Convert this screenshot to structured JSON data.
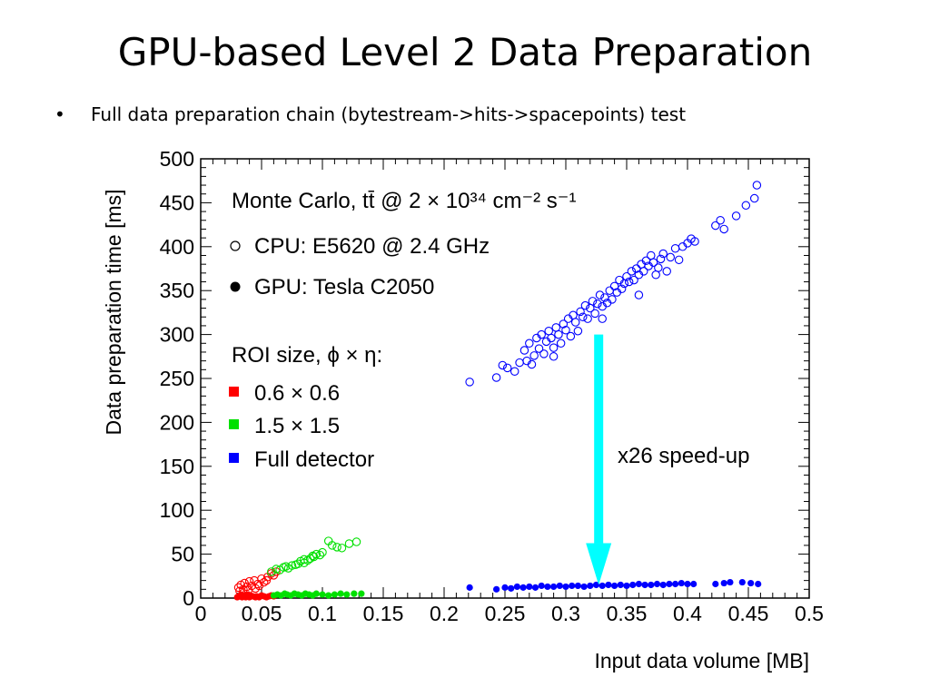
{
  "slide": {
    "title": "GPU-based Level 2 Data Preparation",
    "bullet": "Full data preparation chain (bytestream->hits->spacepoints) test"
  },
  "chart_data": {
    "type": "scatter",
    "xlabel": "Input data volume [MB]",
    "ylabel": "Data preparation time [ms]",
    "xlim": [
      0,
      0.5
    ],
    "ylim": [
      0,
      500
    ],
    "xticks": [
      0,
      0.05,
      0.1,
      0.15,
      0.2,
      0.25,
      0.3,
      0.35,
      0.4,
      0.45,
      0.5
    ],
    "xtick_labels": [
      "0",
      "0.05",
      "0.1",
      "0.15",
      "0.2",
      "0.25",
      "0.3",
      "0.35",
      "0.4",
      "0.45",
      "0.5"
    ],
    "yticks": [
      0,
      50,
      100,
      150,
      200,
      250,
      300,
      350,
      400,
      450,
      500
    ],
    "ytick_labels": [
      "0",
      "50",
      "100",
      "150",
      "200",
      "250",
      "300",
      "350",
      "400",
      "450",
      "500"
    ],
    "grid": false,
    "legend": {
      "placement": "top-left",
      "header": "Monte Carlo, tt̄ @ 2 × 10³⁴ cm⁻² s⁻¹",
      "markers": [
        {
          "label": "CPU: E5620 @ 2.4 GHz",
          "style": "open"
        },
        {
          "label": "GPU: Tesla C2050",
          "style": "filled"
        }
      ],
      "roi_header": "ROI size, ϕ × η:",
      "roi": [
        {
          "label": "0.6 × 0.6",
          "color": "#ff0000"
        },
        {
          "label": "1.5 × 1.5",
          "color": "#00e000"
        },
        {
          "label": "Full detector",
          "color": "#0000ff"
        }
      ]
    },
    "annotation": {
      "text": "x26 speed-up",
      "arrow_x": 0.327,
      "arrow_from": 300,
      "arrow_to": 15,
      "color": "#00ffff"
    },
    "series": [
      {
        "roi": "0.6 × 0.6",
        "cpu_gpu": "CPU",
        "marker": "open",
        "color": "#ff0000",
        "points": [
          [
            0.031,
            12
          ],
          [
            0.033,
            15
          ],
          [
            0.035,
            10
          ],
          [
            0.036,
            17
          ],
          [
            0.038,
            13
          ],
          [
            0.04,
            19
          ],
          [
            0.042,
            14
          ],
          [
            0.044,
            20
          ],
          [
            0.045,
            11
          ],
          [
            0.047,
            16
          ],
          [
            0.05,
            22
          ],
          [
            0.052,
            18
          ],
          [
            0.055,
            24
          ],
          [
            0.058,
            28
          ],
          [
            0.06,
            26
          ],
          [
            0.062,
            30
          ],
          [
            0.032,
            8
          ],
          [
            0.039,
            9
          ],
          [
            0.048,
            14
          ],
          [
            0.054,
            20
          ]
        ]
      },
      {
        "roi": "0.6 × 0.6",
        "cpu_gpu": "GPU",
        "marker": "filled",
        "color": "#ff0000",
        "points": [
          [
            0.03,
            1
          ],
          [
            0.032,
            2
          ],
          [
            0.034,
            1
          ],
          [
            0.035,
            3
          ],
          [
            0.037,
            1
          ],
          [
            0.038,
            2
          ],
          [
            0.04,
            1
          ],
          [
            0.041,
            3
          ],
          [
            0.043,
            2
          ],
          [
            0.045,
            1
          ],
          [
            0.046,
            2
          ],
          [
            0.048,
            1
          ],
          [
            0.05,
            3
          ],
          [
            0.052,
            2
          ],
          [
            0.054,
            1
          ],
          [
            0.056,
            2
          ],
          [
            0.058,
            3
          ],
          [
            0.06,
            2
          ],
          [
            0.033,
            4
          ],
          [
            0.039,
            4
          ]
        ]
      },
      {
        "roi": "1.5 × 1.5",
        "cpu_gpu": "CPU",
        "marker": "open",
        "color": "#00e000",
        "points": [
          [
            0.058,
            30
          ],
          [
            0.062,
            33
          ],
          [
            0.065,
            32
          ],
          [
            0.068,
            35
          ],
          [
            0.07,
            36
          ],
          [
            0.072,
            34
          ],
          [
            0.075,
            37
          ],
          [
            0.078,
            38
          ],
          [
            0.08,
            39
          ],
          [
            0.082,
            42
          ],
          [
            0.085,
            44
          ],
          [
            0.088,
            43
          ],
          [
            0.09,
            45
          ],
          [
            0.092,
            48
          ],
          [
            0.095,
            50
          ],
          [
            0.098,
            49
          ],
          [
            0.1,
            52
          ],
          [
            0.105,
            65
          ],
          [
            0.108,
            60
          ],
          [
            0.112,
            58
          ],
          [
            0.116,
            57
          ],
          [
            0.122,
            62
          ],
          [
            0.128,
            64
          ],
          [
            0.085,
            40
          ],
          [
            0.093,
            47
          ]
        ]
      },
      {
        "roi": "1.5 × 1.5",
        "cpu_gpu": "GPU",
        "marker": "filled",
        "color": "#00e000",
        "points": [
          [
            0.06,
            3
          ],
          [
            0.063,
            4
          ],
          [
            0.066,
            3
          ],
          [
            0.069,
            5
          ],
          [
            0.071,
            4
          ],
          [
            0.074,
            3
          ],
          [
            0.077,
            5
          ],
          [
            0.08,
            4
          ],
          [
            0.083,
            3
          ],
          [
            0.086,
            5
          ],
          [
            0.089,
            4
          ],
          [
            0.092,
            3
          ],
          [
            0.095,
            5
          ],
          [
            0.1,
            4
          ],
          [
            0.105,
            3
          ],
          [
            0.11,
            4
          ],
          [
            0.115,
            5
          ],
          [
            0.12,
            4
          ],
          [
            0.126,
            5
          ],
          [
            0.132,
            5
          ]
        ]
      },
      {
        "roi": "Full detector",
        "cpu_gpu": "CPU",
        "marker": "open",
        "color": "#0000ff",
        "points": [
          [
            0.221,
            246
          ],
          [
            0.243,
            251
          ],
          [
            0.248,
            265
          ],
          [
            0.252,
            262
          ],
          [
            0.258,
            258
          ],
          [
            0.262,
            268
          ],
          [
            0.266,
            282
          ],
          [
            0.268,
            270
          ],
          [
            0.27,
            290
          ],
          [
            0.272,
            266
          ],
          [
            0.274,
            276
          ],
          [
            0.276,
            296
          ],
          [
            0.278,
            284
          ],
          [
            0.28,
            300
          ],
          [
            0.282,
            278
          ],
          [
            0.284,
            292
          ],
          [
            0.286,
            304
          ],
          [
            0.288,
            296
          ],
          [
            0.29,
            285
          ],
          [
            0.292,
            308
          ],
          [
            0.294,
            300
          ],
          [
            0.296,
            290
          ],
          [
            0.298,
            312
          ],
          [
            0.3,
            305
          ],
          [
            0.302,
            318
          ],
          [
            0.304,
            298
          ],
          [
            0.306,
            322
          ],
          [
            0.308,
            314
          ],
          [
            0.31,
            304
          ],
          [
            0.312,
            326
          ],
          [
            0.314,
            320
          ],
          [
            0.316,
            333
          ],
          [
            0.318,
            318
          ],
          [
            0.32,
            330
          ],
          [
            0.322,
            338
          ],
          [
            0.324,
            324
          ],
          [
            0.326,
            335
          ],
          [
            0.328,
            345
          ],
          [
            0.33,
            332
          ],
          [
            0.332,
            342
          ],
          [
            0.334,
            336
          ],
          [
            0.336,
            350
          ],
          [
            0.338,
            340
          ],
          [
            0.34,
            355
          ],
          [
            0.342,
            348
          ],
          [
            0.344,
            362
          ],
          [
            0.346,
            352
          ],
          [
            0.348,
            358
          ],
          [
            0.35,
            366
          ],
          [
            0.352,
            360
          ],
          [
            0.354,
            372
          ],
          [
            0.356,
            362
          ],
          [
            0.358,
            375
          ],
          [
            0.36,
            368
          ],
          [
            0.362,
            380
          ],
          [
            0.364,
            372
          ],
          [
            0.366,
            384
          ],
          [
            0.368,
            378
          ],
          [
            0.37,
            390
          ],
          [
            0.372,
            382
          ],
          [
            0.374,
            368
          ],
          [
            0.376,
            376
          ],
          [
            0.378,
            386
          ],
          [
            0.38,
            392
          ],
          [
            0.383,
            372
          ],
          [
            0.386,
            388
          ],
          [
            0.39,
            398
          ],
          [
            0.393,
            385
          ],
          [
            0.396,
            400
          ],
          [
            0.4,
            404
          ],
          [
            0.403,
            409
          ],
          [
            0.406,
            406
          ],
          [
            0.423,
            424
          ],
          [
            0.427,
            430
          ],
          [
            0.43,
            420
          ],
          [
            0.44,
            435
          ],
          [
            0.448,
            447
          ],
          [
            0.455,
            455
          ],
          [
            0.457,
            470
          ],
          [
            0.36,
            345
          ],
          [
            0.33,
            318
          ],
          [
            0.29,
            275
          ]
        ]
      },
      {
        "roi": "Full detector",
        "cpu_gpu": "GPU",
        "marker": "filled",
        "color": "#0000ff",
        "points": [
          [
            0.221,
            12
          ],
          [
            0.243,
            10
          ],
          [
            0.25,
            12
          ],
          [
            0.255,
            11
          ],
          [
            0.26,
            13
          ],
          [
            0.265,
            12
          ],
          [
            0.27,
            13
          ],
          [
            0.275,
            12
          ],
          [
            0.28,
            14
          ],
          [
            0.285,
            13
          ],
          [
            0.29,
            13
          ],
          [
            0.295,
            14
          ],
          [
            0.3,
            13
          ],
          [
            0.305,
            14
          ],
          [
            0.31,
            14
          ],
          [
            0.315,
            13
          ],
          [
            0.32,
            14
          ],
          [
            0.325,
            15
          ],
          [
            0.33,
            14
          ],
          [
            0.335,
            15
          ],
          [
            0.34,
            14
          ],
          [
            0.345,
            15
          ],
          [
            0.35,
            14
          ],
          [
            0.355,
            15
          ],
          [
            0.36,
            16
          ],
          [
            0.365,
            15
          ],
          [
            0.37,
            15
          ],
          [
            0.375,
            16
          ],
          [
            0.38,
            15
          ],
          [
            0.385,
            16
          ],
          [
            0.39,
            16
          ],
          [
            0.395,
            17
          ],
          [
            0.4,
            16
          ],
          [
            0.405,
            16
          ],
          [
            0.423,
            16
          ],
          [
            0.43,
            17
          ],
          [
            0.435,
            18
          ],
          [
            0.445,
            18
          ],
          [
            0.452,
            17
          ],
          [
            0.458,
            16
          ]
        ]
      }
    ]
  }
}
